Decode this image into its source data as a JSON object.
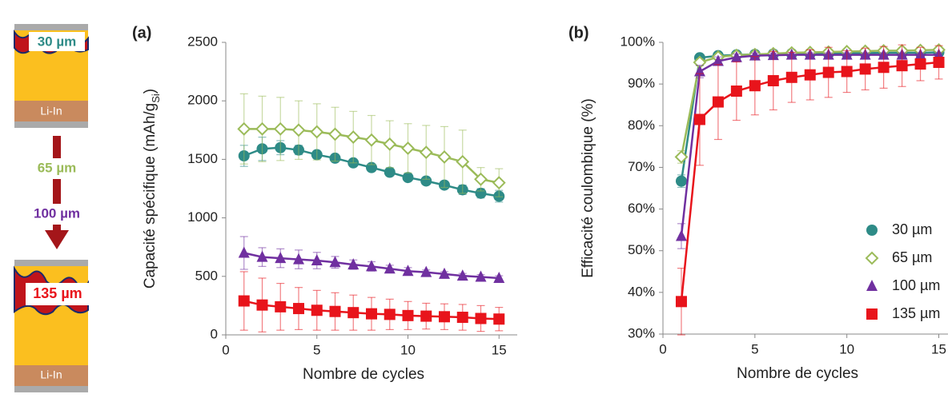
{
  "schematic": {
    "top_thickness": "30 µm",
    "top_anode": "Li-In",
    "mid_thickness_1": "65 µm",
    "mid_thickness_2": "100 µm",
    "bottom_thickness": "135 µm",
    "bottom_anode": "Li-In"
  },
  "chart_data": [
    {
      "type": "line",
      "panel_label": "(a)",
      "y_label": [
        "Capacité spécifique (mAh/g",
        "Si",
        ")"
      ],
      "x_label": "Nombre de cycles",
      "x": [
        1,
        2,
        3,
        4,
        5,
        6,
        7,
        8,
        9,
        10,
        11,
        12,
        13,
        14,
        15
      ],
      "xlim": [
        0,
        16
      ],
      "xticks": [
        0,
        5,
        10,
        15
      ],
      "ylim": [
        0,
        2500
      ],
      "yticks": [
        0,
        500,
        1000,
        1500,
        2000,
        2500
      ],
      "series": [
        {
          "name": "30 µm",
          "color": "#2e8b87",
          "marker": "circle",
          "values": [
            1530,
            1590,
            1600,
            1580,
            1540,
            1510,
            1470,
            1430,
            1390,
            1345,
            1315,
            1280,
            1240,
            1210,
            1185
          ],
          "errors": [
            90,
            100,
            60,
            40,
            30,
            20,
            20,
            20,
            20,
            20,
            20,
            20,
            40,
            40,
            50
          ]
        },
        {
          "name": "65 µm",
          "color": "#9bbb59",
          "marker": "diamond-open",
          "values": [
            1760,
            1760,
            1760,
            1750,
            1735,
            1715,
            1690,
            1665,
            1630,
            1595,
            1560,
            1520,
            1480,
            1330,
            1300
          ],
          "errors": [
            300,
            280,
            270,
            250,
            240,
            230,
            220,
            210,
            200,
            210,
            230,
            260,
            270,
            100,
            120
          ]
        },
        {
          "name": "100 µm",
          "color": "#7030a0",
          "marker": "triangle",
          "values": [
            700,
            665,
            655,
            645,
            635,
            620,
            600,
            585,
            565,
            545,
            535,
            520,
            505,
            495,
            485
          ],
          "errors": [
            140,
            80,
            80,
            80,
            70,
            50,
            40,
            40,
            30,
            30,
            20,
            20,
            20,
            20,
            20
          ]
        },
        {
          "name": "135 µm",
          "color": "#e8141b",
          "marker": "square",
          "values": [
            290,
            255,
            240,
            225,
            210,
            200,
            190,
            180,
            175,
            165,
            160,
            155,
            150,
            140,
            135
          ],
          "errors": [
            250,
            230,
            200,
            180,
            170,
            160,
            150,
            140,
            130,
            120,
            110,
            110,
            110,
            110,
            100
          ]
        }
      ]
    },
    {
      "type": "line",
      "panel_label": "(b)",
      "y_label": [
        "Efficacité coulombique (%)"
      ],
      "x_label": "Nombre de cycles",
      "x": [
        1,
        2,
        3,
        4,
        5,
        6,
        7,
        8,
        9,
        10,
        11,
        12,
        13,
        14,
        15
      ],
      "xlim": [
        0,
        15.5
      ],
      "xticks": [
        0,
        5,
        10,
        15
      ],
      "ylim": [
        30,
        100
      ],
      "yticks": [
        {
          "value": 30,
          "label": "30%"
        },
        {
          "value": 40,
          "label": "40%"
        },
        {
          "value": 50,
          "label": "50%"
        },
        {
          "value": 60,
          "label": "60%"
        },
        {
          "value": 70,
          "label": "70%"
        },
        {
          "value": 80,
          "label": "80%"
        },
        {
          "value": 90,
          "label": "90%"
        },
        {
          "value": 100,
          "label": "100%"
        }
      ],
      "legend": "lower right",
      "series": [
        {
          "name": "30 µm",
          "color": "#2e8b87",
          "marker": "circle",
          "values": [
            66.7,
            96.3,
            96.8,
            97.0,
            97.1,
            97.2,
            97.3,
            97.3,
            97.3,
            97.4,
            97.4,
            97.5,
            97.5,
            97.5,
            97.6
          ],
          "errors": [
            1.5,
            0.5,
            0.5,
            0.5,
            0.5,
            0.5,
            0.5,
            0.5,
            0.5,
            0.5,
            0.5,
            0.5,
            0.5,
            0.5,
            0.5
          ]
        },
        {
          "name": "65 µm",
          "color": "#9bbb59",
          "marker": "diamond-open",
          "values": [
            72.5,
            95.2,
            96.5,
            96.9,
            97.1,
            97.3,
            97.5,
            97.6,
            97.7,
            97.8,
            97.9,
            98.0,
            98.0,
            98.1,
            98.2
          ],
          "errors": [
            1.5,
            0.8,
            0.6,
            0.6,
            0.6,
            0.6,
            0.6,
            0.6,
            0.6,
            0.6,
            0.6,
            0.6,
            0.6,
            0.6,
            0.6
          ]
        },
        {
          "name": "100 µm",
          "color": "#7030a0",
          "marker": "triangle",
          "values": [
            53.5,
            93.0,
            95.5,
            96.4,
            96.8,
            96.9,
            97.0,
            97.0,
            97.0,
            97.0,
            97.0,
            97.0,
            97.0,
            97.0,
            97.0
          ],
          "errors": [
            3,
            1.5,
            1,
            0.8,
            0.6,
            0.5,
            0.5,
            0.5,
            0.5,
            0.5,
            0.5,
            0.5,
            0.5,
            0.5,
            0.5
          ]
        },
        {
          "name": "135 µm",
          "color": "#e8141b",
          "marker": "square",
          "values": [
            37.8,
            81.5,
            85.7,
            88.3,
            89.6,
            90.8,
            91.6,
            92.2,
            92.8,
            93.0,
            93.6,
            94.0,
            94.4,
            94.8,
            95.2
          ],
          "errors": [
            8,
            11,
            9,
            7,
            7,
            7,
            6,
            6,
            6,
            5,
            5,
            5,
            5,
            4,
            4
          ]
        }
      ]
    }
  ]
}
